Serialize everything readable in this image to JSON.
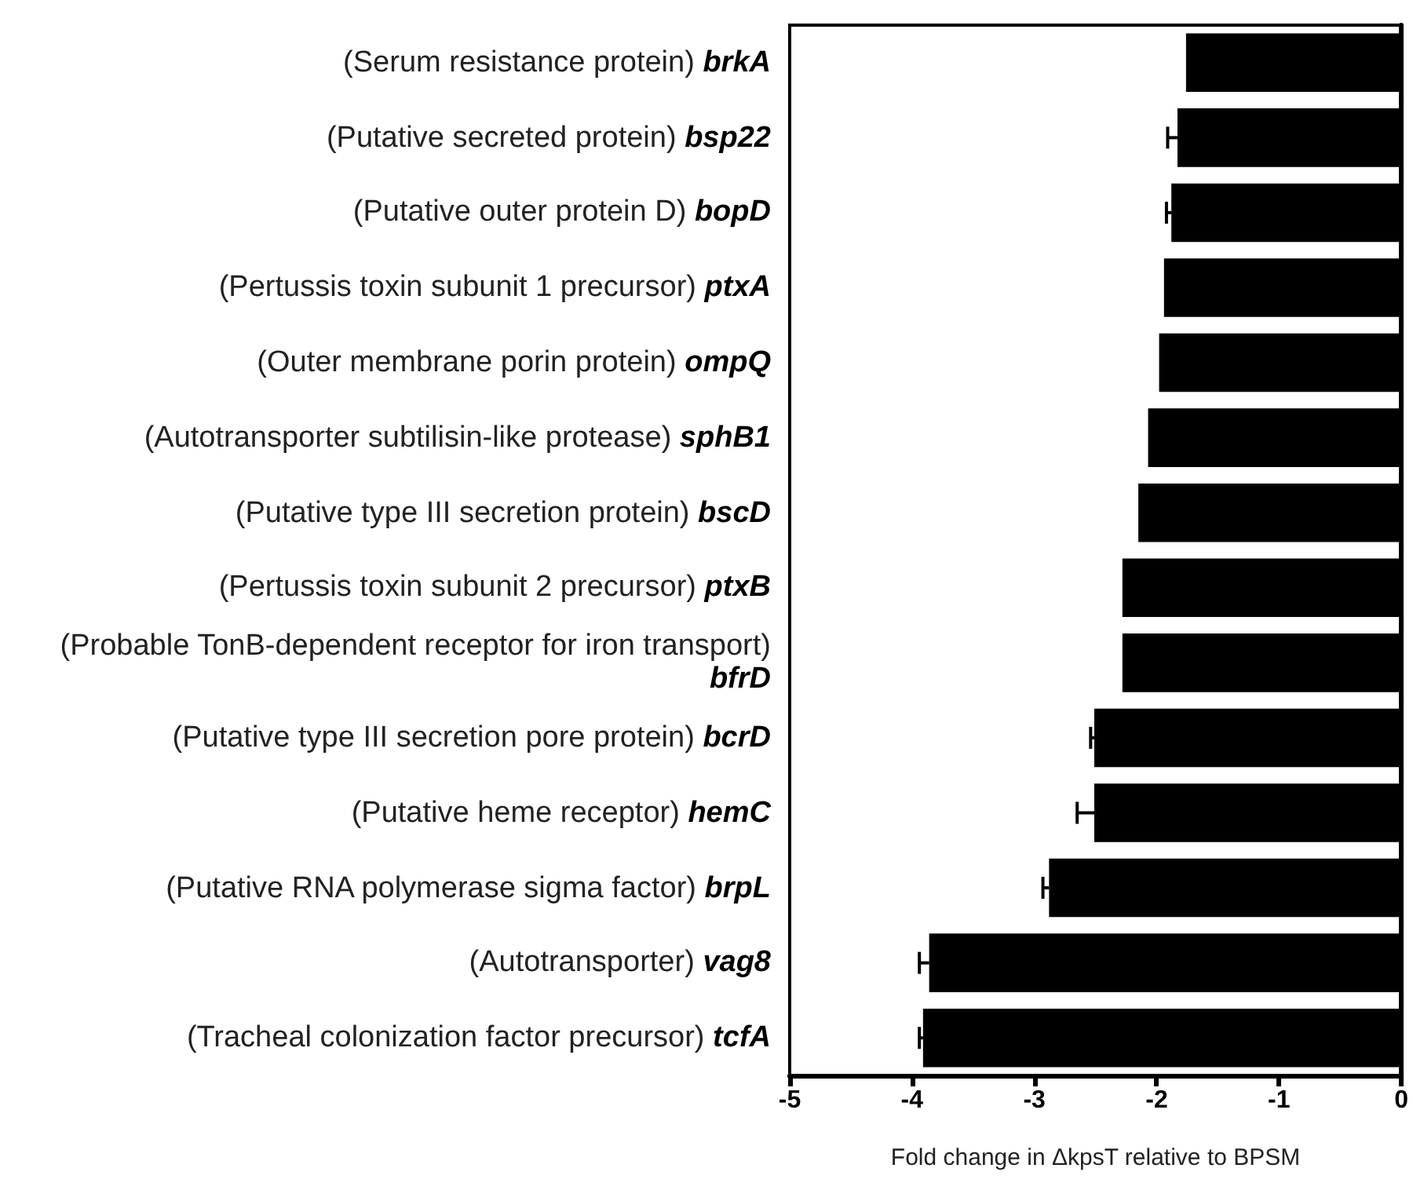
{
  "chart_data": {
    "type": "bar",
    "orientation": "horizontal",
    "xlabel": "Fold change in ΔkpsT relative to BPSM",
    "categories": [
      "(Serum resistance protein) brkA",
      "(Putative secreted protein) bsp22",
      "(Putative outer protein D) bopD",
      "(Pertussis toxin subunit 1 precursor) ptxA",
      "(Outer membrane porin protein) ompQ",
      "(Autotransporter subtilisin-like protease) sphB1",
      "(Putative type III secretion protein) bscD",
      "(Pertussis toxin subunit 2 precursor) ptxB",
      "(Probable TonB-dependent receptor for iron transport) bfrD",
      "(Putative type III secretion pore protein) bcrD",
      "(Putative heme receptor) hemC",
      "(Putative RNA polymerase sigma factor) brpL",
      "(Autotransporter) vag8",
      "(Tracheal colonization factor precursor) tcfA"
    ],
    "values": [
      -1.76,
      -1.83,
      -1.88,
      -1.94,
      -1.98,
      -2.07,
      -2.15,
      -2.28,
      -2.28,
      -2.51,
      -2.51,
      -2.88,
      -3.86,
      -3.91
    ],
    "errors": [
      null,
      [
        -1.91,
        -1.83
      ],
      [
        -1.92,
        -1.88
      ],
      null,
      null,
      null,
      null,
      null,
      null,
      [
        -2.54,
        -2.51
      ],
      [
        -2.65,
        -2.51
      ],
      [
        -2.93,
        -2.88
      ],
      [
        -3.94,
        -3.86
      ],
      [
        -3.94,
        -3.91
      ]
    ],
    "color": "#000000",
    "xlim": [
      -5,
      0
    ],
    "xticks": [
      -5,
      -4,
      -3,
      -2,
      -1,
      0
    ],
    "grid": false
  }
}
